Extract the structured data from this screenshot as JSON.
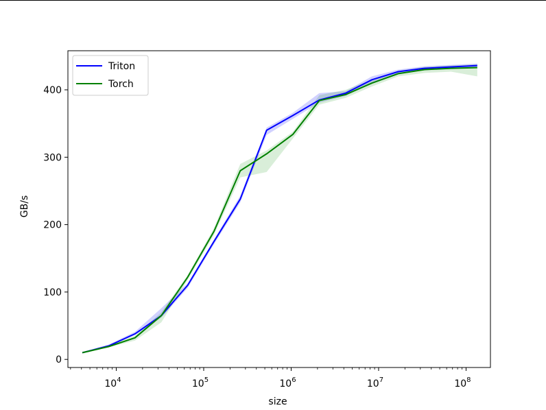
{
  "chart_data": {
    "type": "line",
    "xscale": "log",
    "xlabel": "size",
    "ylabel": "GB/s",
    "xlim": [
      2800,
      190000000
    ],
    "ylim": [
      -12,
      458
    ],
    "yticks": [
      0,
      100,
      200,
      300,
      400
    ],
    "xticks": [
      {
        "value": 10000,
        "base": "10",
        "exp": "4"
      },
      {
        "value": 100000,
        "base": "10",
        "exp": "5"
      },
      {
        "value": 1000000,
        "base": "10",
        "exp": "6"
      },
      {
        "value": 10000000,
        "base": "10",
        "exp": "7"
      },
      {
        "value": 100000000,
        "base": "10",
        "exp": "8"
      }
    ],
    "legend": {
      "location": "upper-left"
    },
    "x": [
      4096,
      8192,
      16384,
      32768,
      65536,
      131072,
      262144,
      524288,
      1048576,
      2097152,
      4194304,
      8388608,
      16777216,
      33554432,
      67108864,
      134217728
    ],
    "series": [
      {
        "name": "Triton",
        "color": "#0000ff",
        "band_color": "#0000ff",
        "values": [
          10,
          20,
          38,
          65,
          110,
          175,
          238,
          340,
          362,
          385,
          395,
          415,
          427,
          432,
          434,
          436
        ],
        "lower": [
          9,
          19,
          36,
          62,
          106,
          171,
          233,
          333,
          357,
          381,
          391,
          411,
          424,
          429,
          431,
          433
        ],
        "upper": [
          11,
          22,
          41,
          76,
          113,
          178,
          243,
          344,
          366,
          395,
          398,
          420,
          430,
          435,
          437,
          439
        ]
      },
      {
        "name": "Torch",
        "color": "#008000",
        "band_color": "#2ca02c",
        "values": [
          10,
          19,
          32,
          65,
          122,
          190,
          280,
          305,
          334,
          384,
          393,
          410,
          424,
          430,
          432,
          433
        ],
        "lower": [
          9,
          18,
          28,
          55,
          118,
          185,
          270,
          278,
          328,
          378,
          388,
          405,
          420,
          425,
          427,
          420
        ],
        "upper": [
          11,
          21,
          35,
          70,
          125,
          195,
          290,
          310,
          338,
          392,
          400,
          415,
          428,
          434,
          436,
          438
        ]
      }
    ]
  }
}
